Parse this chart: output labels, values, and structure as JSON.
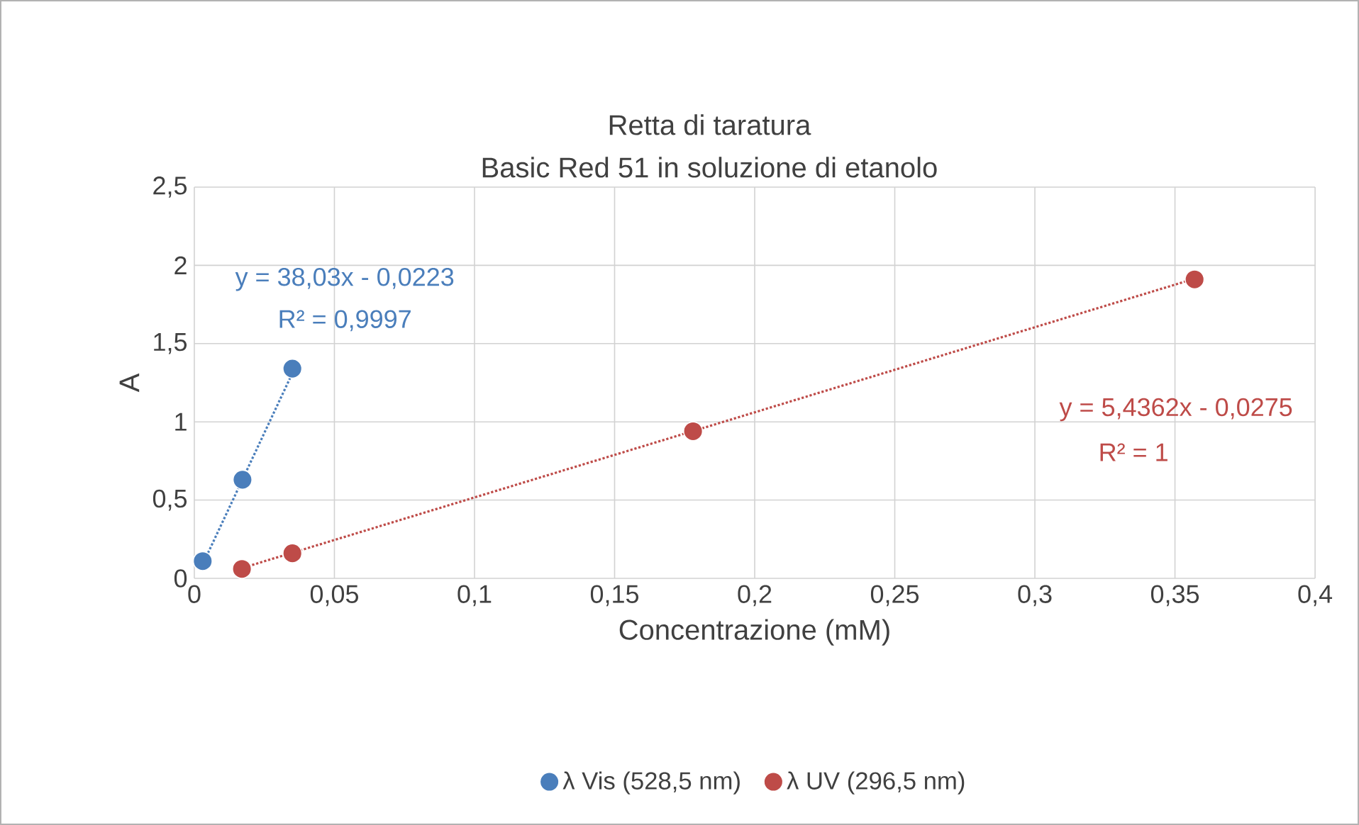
{
  "chart_data": {
    "type": "scatter",
    "title": "Retta di taratura",
    "subtitle": "Basic Red 51 in soluzione di etanolo",
    "xlabel": "Concentrazione (mM)",
    "ylabel": "A",
    "xlim": [
      0,
      0.4
    ],
    "ylim": [
      0,
      2.5
    ],
    "xticks": [
      {
        "value": 0,
        "label": "0"
      },
      {
        "value": 0.05,
        "label": "0,05"
      },
      {
        "value": 0.1,
        "label": "0,1"
      },
      {
        "value": 0.15,
        "label": "0,15"
      },
      {
        "value": 0.2,
        "label": "0,2"
      },
      {
        "value": 0.25,
        "label": "0,25"
      },
      {
        "value": 0.3,
        "label": "0,3"
      },
      {
        "value": 0.35,
        "label": "0,35"
      },
      {
        "value": 0.4,
        "label": "0,4"
      }
    ],
    "yticks": [
      {
        "value": 0,
        "label": "0"
      },
      {
        "value": 0.5,
        "label": "0,5"
      },
      {
        "value": 1,
        "label": "1"
      },
      {
        "value": 1.5,
        "label": "1,5"
      },
      {
        "value": 2,
        "label": "2"
      },
      {
        "value": 2.5,
        "label": "2,5"
      }
    ],
    "grid": true,
    "legend": "bottom",
    "series": [
      {
        "name": "λ Vis (528,5 nm)",
        "color": "#4a7ebb",
        "x": [
          0.003,
          0.0172,
          0.035
        ],
        "values": [
          0.11,
          0.63,
          1.34
        ]
      },
      {
        "name": "λ UV (296,5 nm)",
        "color": "#be4b48",
        "x": [
          0.017,
          0.035,
          0.178,
          0.357
        ],
        "values": [
          0.06,
          0.16,
          0.94,
          1.91
        ]
      },
      {
        "type": "line",
        "color": "#4a7ebb",
        "line_style": "dotted",
        "x": [
          0.003,
          0.0355
        ],
        "values": [
          0.09,
          1.33
        ]
      },
      {
        "type": "line",
        "color": "#be4b48",
        "line_style": "dotted",
        "x": [
          0.0178,
          0.358
        ],
        "values": [
          0.07,
          1.92
        ]
      }
    ],
    "annotations": [
      "y = 38,03x - 0,0223",
      "R² = 0,9997",
      "y = 5,4362x - 0,0275",
      "R² = 1"
    ]
  }
}
